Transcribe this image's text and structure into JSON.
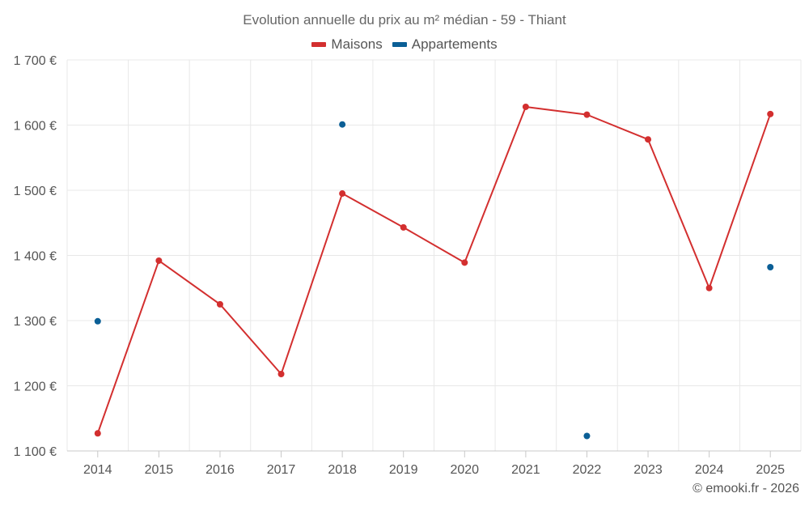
{
  "chart_data": {
    "type": "line",
    "title": "Evolution annuelle du prix au m² médian - 59 - Thiant",
    "categories": [
      "2014",
      "2015",
      "2016",
      "2017",
      "2018",
      "2019",
      "2020",
      "2021",
      "2022",
      "2023",
      "2024",
      "2025"
    ],
    "series": [
      {
        "name": "Maisons",
        "color": "#d32f2f",
        "style": "line",
        "values": [
          1127,
          1392,
          1325,
          1218,
          1495,
          1443,
          1389,
          1628,
          1616,
          1578,
          1350,
          1617
        ]
      },
      {
        "name": "Appartements",
        "color": "#0b5f96",
        "style": "scatter",
        "values": [
          1299,
          null,
          null,
          null,
          1601,
          null,
          null,
          null,
          1123,
          null,
          null,
          1382
        ]
      }
    ],
    "ylim": [
      1100,
      1700
    ],
    "yticks": [
      1100,
      1200,
      1300,
      1400,
      1500,
      1600,
      1700
    ],
    "ytick_labels": [
      "1 100 €",
      "1 200 €",
      "1 300 €",
      "1 400 €",
      "1 500 €",
      "1 600 €",
      "1 700 €"
    ],
    "xlabel": "",
    "ylabel": "",
    "grid": true,
    "legend_position": "top-center"
  },
  "credit": "© emooki.fr - 2026"
}
